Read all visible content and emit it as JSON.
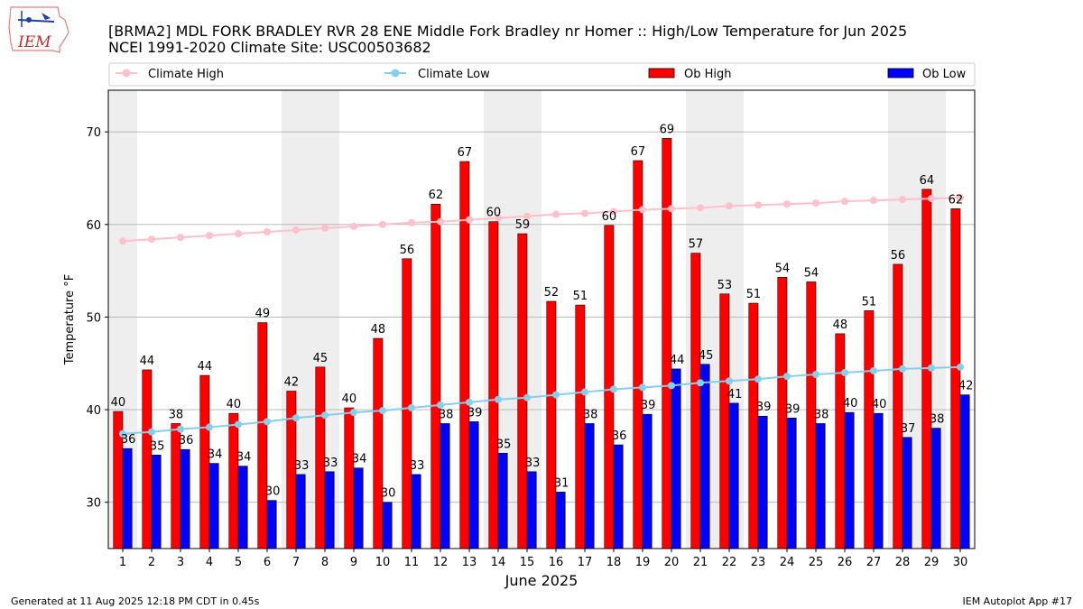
{
  "title_line1": "[BRMA2] MDL FORK BRADLEY RVR 28 ENE Middle Fork Bradley nr Homer :: High/Low Temperature for Jun 2025",
  "title_line2": "NCEI 1991-2020 Climate Site: USC00503682",
  "logo_text": "IEM",
  "footer_left": "Generated at 11 Aug 2025 12:18 PM CDT in 0.45s",
  "footer_right": "IEM Autoplot App #17",
  "colors": {
    "ob_high": "#ff0000",
    "ob_low": "#0000ff",
    "climate_high": "#ffc0cb",
    "climate_low": "#87ceeb",
    "weekend_shade": "#eeeeee",
    "grid": "#b0b0b0"
  },
  "chart_data": {
    "type": "bar",
    "xlabel": "June 2025",
    "ylabel": "Temperature °F",
    "ylim": [
      25,
      74.5
    ],
    "yticks": [
      30,
      40,
      50,
      60,
      70
    ],
    "grid": true,
    "legend_placement": "top",
    "categories": [
      1,
      2,
      3,
      4,
      5,
      6,
      7,
      8,
      9,
      10,
      11,
      12,
      13,
      14,
      15,
      16,
      17,
      18,
      19,
      20,
      21,
      22,
      23,
      24,
      25,
      26,
      27,
      28,
      29,
      30
    ],
    "shaded_days": [
      1,
      7,
      8,
      14,
      15,
      21,
      22,
      28,
      29
    ],
    "series": [
      {
        "name": "Ob High",
        "kind": "bar",
        "values": [
          39.8,
          44.3,
          38.5,
          43.7,
          39.6,
          49.4,
          42.0,
          44.6,
          40.2,
          47.7,
          56.3,
          62.2,
          66.8,
          60.3,
          59.0,
          51.7,
          51.3,
          59.9,
          66.9,
          69.3,
          56.9,
          52.5,
          51.5,
          54.3,
          53.8,
          48.2,
          50.7,
          55.7,
          63.8,
          61.7
        ],
        "labels": [
          "40",
          "44",
          "38",
          "44",
          "40",
          "49",
          "42",
          "45",
          "40",
          "48",
          "56",
          "62",
          "67",
          "60",
          "59",
          "52",
          "51",
          "60",
          "67",
          "69",
          "57",
          "53",
          "51",
          "54",
          "54",
          "48",
          "51",
          "56",
          "64",
          "62"
        ]
      },
      {
        "name": "Ob Low",
        "kind": "bar",
        "values": [
          35.8,
          35.1,
          35.7,
          34.2,
          33.9,
          30.2,
          33.0,
          33.3,
          33.7,
          30.0,
          33.0,
          38.5,
          38.7,
          35.3,
          33.3,
          31.1,
          38.5,
          36.2,
          39.5,
          44.4,
          44.9,
          40.7,
          39.3,
          39.1,
          38.5,
          39.7,
          39.6,
          37.0,
          38.0,
          41.6
        ],
        "labels": [
          "36",
          "35",
          "36",
          "34",
          "34",
          "30",
          "33",
          "33",
          "34",
          "30",
          "33",
          "38",
          "39",
          "35",
          "33",
          "31",
          "38",
          "36",
          "39",
          "44",
          "45",
          "41",
          "39",
          "39",
          "38",
          "40",
          "40",
          "37",
          "38",
          "42"
        ]
      },
      {
        "name": "Climate High",
        "kind": "line",
        "values": [
          58.2,
          58.4,
          58.6,
          58.8,
          59.0,
          59.2,
          59.4,
          59.6,
          59.8,
          60.0,
          60.2,
          60.3,
          60.5,
          60.7,
          60.9,
          61.1,
          61.2,
          61.4,
          61.6,
          61.7,
          61.8,
          62.0,
          62.1,
          62.2,
          62.3,
          62.5,
          62.6,
          62.7,
          62.8,
          62.9
        ]
      },
      {
        "name": "Climate Low",
        "kind": "line",
        "values": [
          37.4,
          37.6,
          37.9,
          38.1,
          38.4,
          38.7,
          39.1,
          39.4,
          39.7,
          39.9,
          40.2,
          40.5,
          40.8,
          41.1,
          41.3,
          41.6,
          41.9,
          42.2,
          42.4,
          42.6,
          42.9,
          43.1,
          43.3,
          43.6,
          43.8,
          44.0,
          44.2,
          44.4,
          44.5,
          44.6
        ]
      }
    ]
  }
}
